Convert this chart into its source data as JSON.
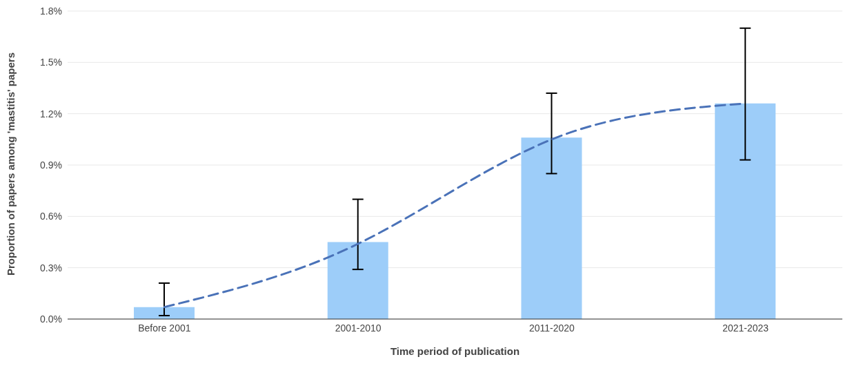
{
  "chart_data": {
    "type": "bar",
    "xlabel": "Time period of publication",
    "ylabel": "Proportion of papers among 'mastitis' papers",
    "categories": [
      "Before 2001",
      "2001-2010",
      "2011-2020",
      "2021-2023"
    ],
    "series": [
      {
        "color": "#9dcdf9",
        "values": [
          0.07,
          0.45,
          1.06,
          1.26
        ],
        "errors": [
          [
            0.02,
            0.21
          ],
          [
            0.29,
            0.7
          ],
          [
            0.85,
            1.32
          ],
          [
            0.93,
            1.7
          ]
        ]
      },
      {
        "type": "line",
        "color": "#4a72b8",
        "values": [
          0.07,
          0.44,
          1.05,
          1.26
        ],
        "line_style": "dashed",
        "marker": "none"
      }
    ],
    "ylim": [
      0,
      1.8
    ],
    "yticks": [
      {
        "value": 0,
        "label": "0.0%"
      },
      {
        "value": 0.3,
        "label": "0.3%"
      },
      {
        "value": 0.6,
        "label": "0.6%"
      },
      {
        "value": 0.9,
        "label": "0.9%"
      },
      {
        "value": 1.2,
        "label": "1.2%"
      },
      {
        "value": 1.5,
        "label": "1.5%"
      },
      {
        "value": 1.8,
        "label": "1.8%"
      }
    ],
    "grid": "y",
    "legend": false
  }
}
